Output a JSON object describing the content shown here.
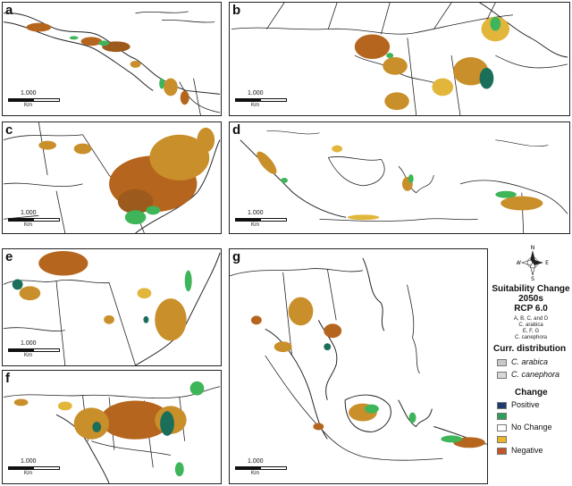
{
  "panels": {
    "a": {
      "label": "a",
      "scale_value": "1.000",
      "scale_unit": "Km"
    },
    "b": {
      "label": "b",
      "scale_value": "1.000",
      "scale_unit": "Km"
    },
    "c": {
      "label": "c",
      "scale_value": "1.000",
      "scale_unit": "Km"
    },
    "d": {
      "label": "d",
      "scale_value": "1.000",
      "scale_unit": "Km"
    },
    "e": {
      "label": "e",
      "scale_value": "1.000",
      "scale_unit": "Km"
    },
    "f": {
      "label": "f",
      "scale_value": "1.000",
      "scale_unit": "Km"
    },
    "g": {
      "label": "g",
      "scale_value": "1.000",
      "scale_unit": "Km"
    }
  },
  "compass": {
    "n": "N",
    "s": "S",
    "e": "E",
    "w": "W"
  },
  "legend": {
    "title_line1": "Suitability Change",
    "title_line2": "2050s",
    "title_line3": "RCP 6.0",
    "species_note_1": "A, B, C, and D",
    "species_note_2": "C. arabica",
    "species_note_3": "E, F, G",
    "species_note_4": "C. canephora",
    "curr_heading": "Curr. distribution",
    "curr_items": [
      {
        "label": "C. arabica",
        "color": "#c8c8c8"
      },
      {
        "label": "C. canephora",
        "color": "#d8d8d8"
      }
    ],
    "change_heading": "Change",
    "change_items": [
      {
        "label": "Positive",
        "color": "#1f3b6e"
      },
      {
        "label": "",
        "color": "#2e9e5a"
      },
      {
        "label": "No Change",
        "color": "#ffffff"
      },
      {
        "label": "",
        "color": "#e9b52b"
      },
      {
        "label": "Negative",
        "color": "#c0552a"
      }
    ]
  },
  "colors": {
    "negative": "#b5651d",
    "mid": "#c98f2a",
    "yellow": "#e2b63a",
    "positive": "#3fb55a",
    "dark_positive": "#1b6f5a",
    "border": "#222222"
  }
}
